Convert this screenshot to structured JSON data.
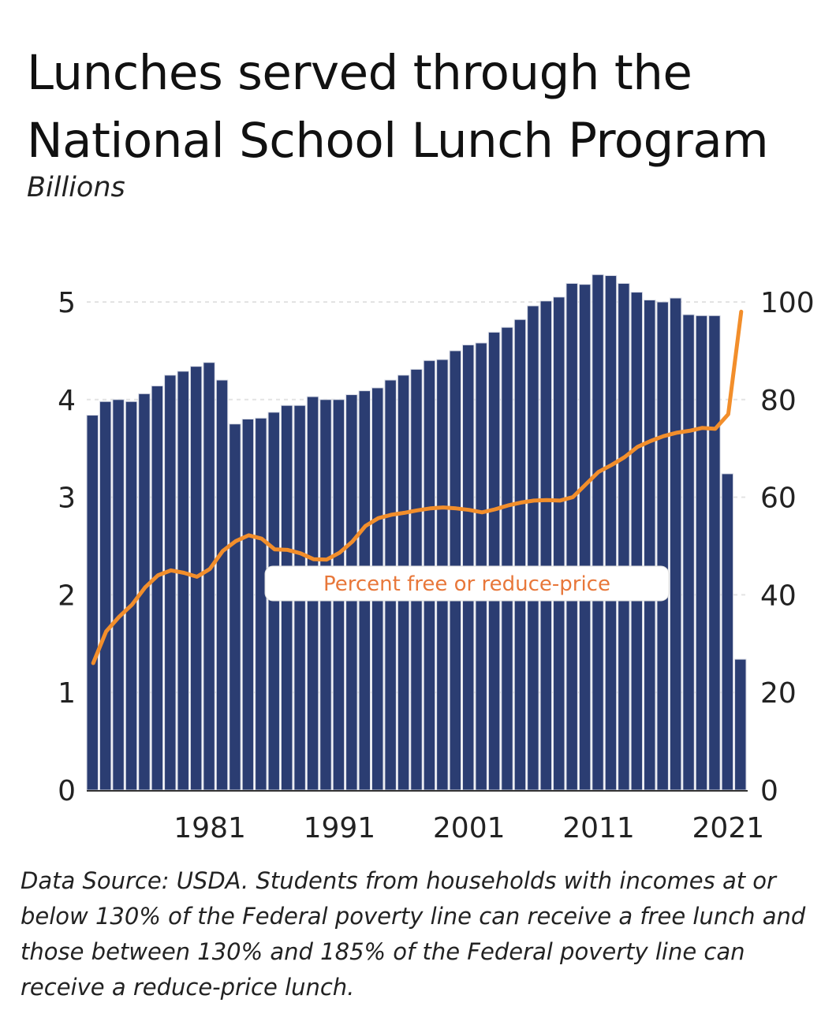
{
  "title": "Lunches served through the National School Lunch Program",
  "subtitle": "Billions",
  "footnote": "Data Source: USDA. Students from households with incomes at or below 130% of the Federal poverty line can receive a free lunch and those between 130% and 185% of the Federal poverty line can receive a reduce-price lunch.",
  "chart_data": {
    "type": "bar",
    "x": [
      1972,
      1973,
      1974,
      1975,
      1976,
      1977,
      1978,
      1979,
      1980,
      1981,
      1982,
      1983,
      1984,
      1985,
      1986,
      1987,
      1988,
      1989,
      1990,
      1991,
      1992,
      1993,
      1994,
      1995,
      1996,
      1997,
      1998,
      1999,
      2000,
      2001,
      2002,
      2003,
      2004,
      2005,
      2006,
      2007,
      2008,
      2009,
      2010,
      2011,
      2012,
      2013,
      2014,
      2015,
      2016,
      2017,
      2018,
      2019,
      2020,
      2021,
      2022
    ],
    "xticks": [
      "1981",
      "1991",
      "2001",
      "2011",
      "2021"
    ],
    "xtick_values": [
      1981,
      1991,
      2001,
      2011,
      2021
    ],
    "series": [
      {
        "axis": "left",
        "type": "bar",
        "color": "#2b3d72",
        "values": [
          3.84,
          3.98,
          4.0,
          3.98,
          4.06,
          4.14,
          4.25,
          4.29,
          4.34,
          4.38,
          4.2,
          3.75,
          3.8,
          3.81,
          3.87,
          3.94,
          3.94,
          4.03,
          4.0,
          4.0,
          4.05,
          4.09,
          4.12,
          4.2,
          4.25,
          4.31,
          4.4,
          4.41,
          4.5,
          4.56,
          4.58,
          4.69,
          4.74,
          4.82,
          4.96,
          5.01,
          5.05,
          5.19,
          5.18,
          5.28,
          5.27,
          5.19,
          5.1,
          5.02,
          5.0,
          5.04,
          4.87,
          4.86,
          4.86,
          3.24,
          1.34
        ]
      },
      {
        "name": "Percent free or reduce-price",
        "axis": "right",
        "type": "line",
        "color": "#f28e2b",
        "values": [
          26.0,
          32.5,
          35.5,
          38.0,
          41.5,
          44.0,
          45.0,
          44.5,
          43.7,
          45.3,
          49.0,
          51.0,
          52.2,
          51.5,
          49.3,
          49.2,
          48.5,
          47.3,
          47.2,
          48.6,
          50.9,
          54.1,
          55.7,
          56.4,
          56.8,
          57.3,
          57.7,
          57.9,
          57.7,
          57.4,
          56.9,
          57.5,
          58.3,
          58.9,
          59.3,
          59.4,
          59.3,
          60.0,
          62.6,
          65.2,
          66.6,
          68.2,
          70.3,
          71.5,
          72.5,
          73.2,
          73.6,
          74.2,
          74.0,
          77.0,
          98.0
        ]
      }
    ],
    "y_left": {
      "ticks": [
        0,
        1,
        2,
        3,
        4,
        5
      ],
      "lim": [
        0,
        5.25
      ]
    },
    "y_right": {
      "ticks": [
        0,
        20,
        40,
        60,
        80,
        100
      ],
      "lim": [
        0,
        105
      ]
    },
    "legend_label": "Percent free or reduce-price",
    "grid": "horizontal dashed"
  }
}
